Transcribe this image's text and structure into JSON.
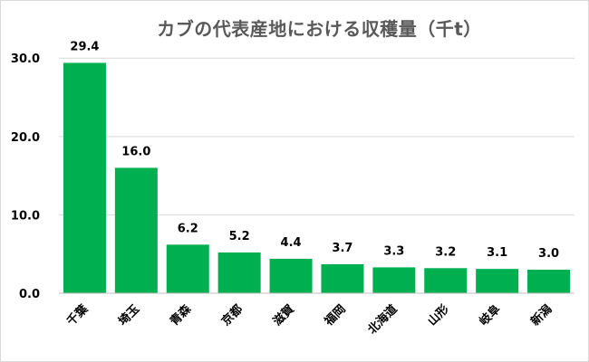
{
  "chart_data": {
    "type": "bar",
    "title": "カブの代表産地における収穫量（千t）",
    "xlabel": "",
    "ylabel": "",
    "categories": [
      "千葉",
      "埼玉",
      "青森",
      "京都",
      "滋賀",
      "福岡",
      "北海道",
      "山形",
      "岐阜",
      "新潟"
    ],
    "values": [
      29.4,
      16.0,
      6.2,
      5.2,
      4.4,
      3.7,
      3.3,
      3.2,
      3.1,
      3.0
    ],
    "value_labels": [
      "29.4",
      "16.0",
      "6.2",
      "5.2",
      "4.4",
      "3.7",
      "3.3",
      "3.2",
      "3.1",
      "3.0"
    ],
    "ylim": [
      0,
      30
    ],
    "yticks": [
      0,
      10,
      20,
      30
    ],
    "ytick_labels": [
      "0.0",
      "10.0",
      "20.0",
      "30.0"
    ],
    "grid": true,
    "legend": "none",
    "bar_color": "#00b050",
    "grid_color": "#d9d9d9",
    "axis_color": "#bfbfbf"
  }
}
